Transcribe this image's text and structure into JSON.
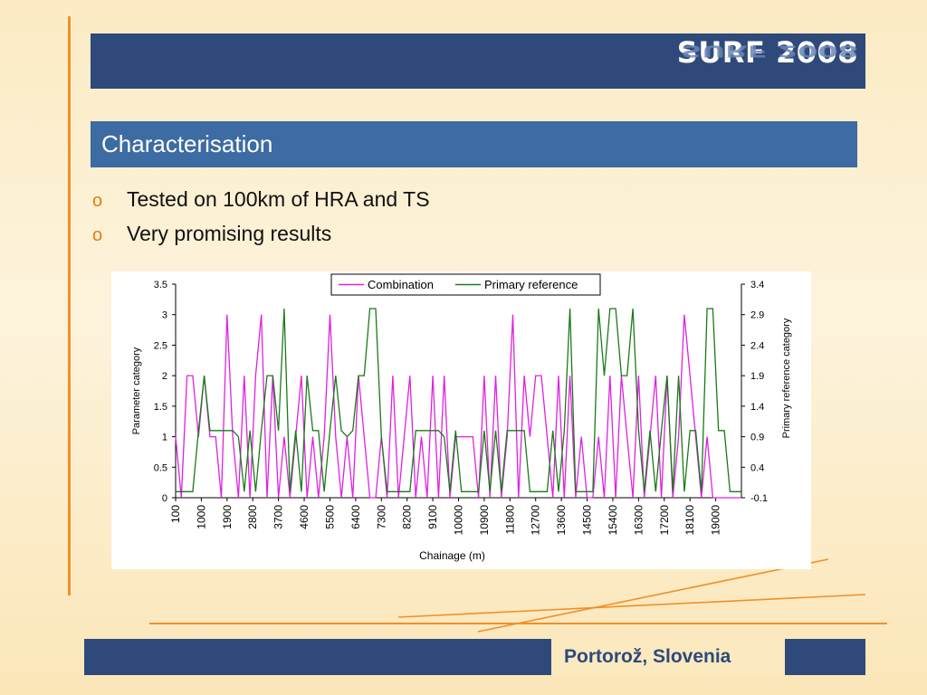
{
  "header": {
    "brand": "SURF 2008"
  },
  "slide": {
    "title": "Characterisation",
    "bullets": [
      "Tested on 100km of HRA and TS",
      "Very promising results"
    ]
  },
  "footer": {
    "location": "Portorož, Slovenia"
  },
  "colors": {
    "banner": "#2f4a7a",
    "title_bar": "#3d6ba3",
    "accent": "#f0902a",
    "combination": "#e020e0",
    "primary_reference": "#1a7a1a"
  },
  "chart_data": {
    "type": "line",
    "xlabel": "Chainage (m)",
    "ylabel": "Parameter category",
    "y2label": "Primary reference category",
    "ylim": [
      0,
      3.5
    ],
    "yticks": [
      "0",
      "0.5",
      "1",
      "1.5",
      "2",
      "2.5",
      "3",
      "3.5"
    ],
    "y2lim": [
      -0.1,
      3.4
    ],
    "y2ticks": [
      "-0.1",
      "0.4",
      "0.9",
      "1.4",
      "1.9",
      "2.4",
      "2.9",
      "3.4"
    ],
    "xlim": [
      100,
      19900
    ],
    "xticks": [
      "100",
      "1000",
      "1900",
      "2800",
      "3700",
      "4600",
      "5500",
      "6400",
      "7300",
      "8200",
      "9100",
      "10000",
      "10900",
      "11800",
      "12700",
      "13600",
      "14500",
      "15400",
      "16300",
      "17200",
      "18100",
      "19000"
    ],
    "legend_position": "top-center",
    "series": [
      {
        "name": "Combination",
        "axis": "left",
        "x": [
          100,
          300,
          500,
          700,
          900,
          1100,
          1300,
          1500,
          1700,
          1900,
          2100,
          2300,
          2500,
          2700,
          2900,
          3100,
          3300,
          3500,
          3700,
          3900,
          4100,
          4300,
          4500,
          4700,
          4900,
          5100,
          5300,
          5500,
          5700,
          5900,
          6100,
          6300,
          6500,
          6700,
          6900,
          7100,
          7300,
          7500,
          7700,
          7900,
          8100,
          8300,
          8500,
          8700,
          8900,
          9100,
          9300,
          9500,
          9700,
          9900,
          10100,
          10300,
          10500,
          10700,
          10900,
          11100,
          11300,
          11500,
          11700,
          11900,
          12100,
          12300,
          12500,
          12700,
          12900,
          13100,
          13300,
          13500,
          13700,
          13900,
          14100,
          14300,
          14500,
          14700,
          14900,
          15100,
          15300,
          15500,
          15700,
          15900,
          16100,
          16300,
          16500,
          16700,
          16900,
          17100,
          17300,
          17500,
          17700,
          17900,
          18100,
          18300,
          18500,
          18700,
          18900,
          19100,
          19300,
          19500,
          19700,
          19900
        ],
        "values": [
          1,
          0,
          2,
          2,
          1,
          2,
          1,
          1,
          0,
          3,
          1,
          0,
          2,
          0,
          2,
          3,
          0,
          2,
          0,
          1,
          0,
          1,
          2,
          0,
          1,
          0,
          1,
          3,
          1,
          0,
          1,
          0,
          2,
          1,
          0,
          0,
          1,
          0,
          2,
          0,
          1,
          2,
          0,
          1,
          0,
          2,
          0,
          2,
          0,
          1,
          1,
          1,
          1,
          0,
          2,
          0,
          2,
          0,
          1,
          3,
          0,
          2,
          1,
          2,
          2,
          1,
          0,
          2,
          0,
          2,
          0,
          1,
          0,
          0,
          1,
          0,
          2,
          0,
          2,
          1,
          0,
          2,
          0,
          1,
          2,
          0,
          2,
          0,
          1,
          3,
          2,
          1,
          0,
          1,
          0,
          0,
          0,
          0,
          0,
          0
        ]
      },
      {
        "name": "Primary reference",
        "axis": "right",
        "x": [
          100,
          300,
          500,
          700,
          900,
          1100,
          1300,
          1500,
          1700,
          1900,
          2100,
          2300,
          2500,
          2700,
          2900,
          3100,
          3300,
          3500,
          3700,
          3900,
          4100,
          4300,
          4500,
          4700,
          4900,
          5100,
          5300,
          5500,
          5700,
          5900,
          6100,
          6300,
          6500,
          6700,
          6900,
          7100,
          7300,
          7500,
          7700,
          7900,
          8100,
          8300,
          8500,
          8700,
          8900,
          9100,
          9300,
          9500,
          9700,
          9900,
          10100,
          10300,
          10500,
          10700,
          10900,
          11100,
          11300,
          11500,
          11700,
          11900,
          12100,
          12300,
          12500,
          12700,
          12900,
          13100,
          13300,
          13500,
          13700,
          13900,
          14100,
          14300,
          14500,
          14700,
          14900,
          15100,
          15300,
          15500,
          15700,
          15900,
          16100,
          16300,
          16500,
          16700,
          16900,
          17100,
          17300,
          17500,
          17700,
          17900,
          18100,
          18300,
          18500,
          18700,
          18900,
          19100,
          19300,
          19500,
          19700,
          19900
        ],
        "values": [
          0,
          0,
          0,
          0,
          1,
          1.9,
          1,
          1,
          1,
          1,
          1,
          0.9,
          0,
          1,
          0,
          1,
          1.9,
          1.9,
          1,
          3,
          0,
          1,
          0,
          1.9,
          1,
          1,
          0,
          1,
          1.9,
          1,
          0.9,
          1,
          1.9,
          1.9,
          3,
          3,
          0.9,
          0,
          0,
          0,
          0,
          0,
          1,
          1,
          1,
          1,
          1,
          0.9,
          0,
          1,
          0,
          0,
          0,
          0,
          1,
          0,
          1,
          0,
          1,
          1,
          1,
          1,
          0,
          0,
          0,
          0,
          1,
          0,
          1,
          3,
          0,
          0,
          0,
          0,
          3,
          1.9,
          3,
          3,
          1.9,
          1.9,
          3,
          1,
          0,
          1,
          0,
          1,
          1.9,
          0,
          1.9,
          0,
          1,
          1,
          0,
          3,
          3,
          1,
          1,
          0,
          0,
          0
        ]
      }
    ]
  }
}
